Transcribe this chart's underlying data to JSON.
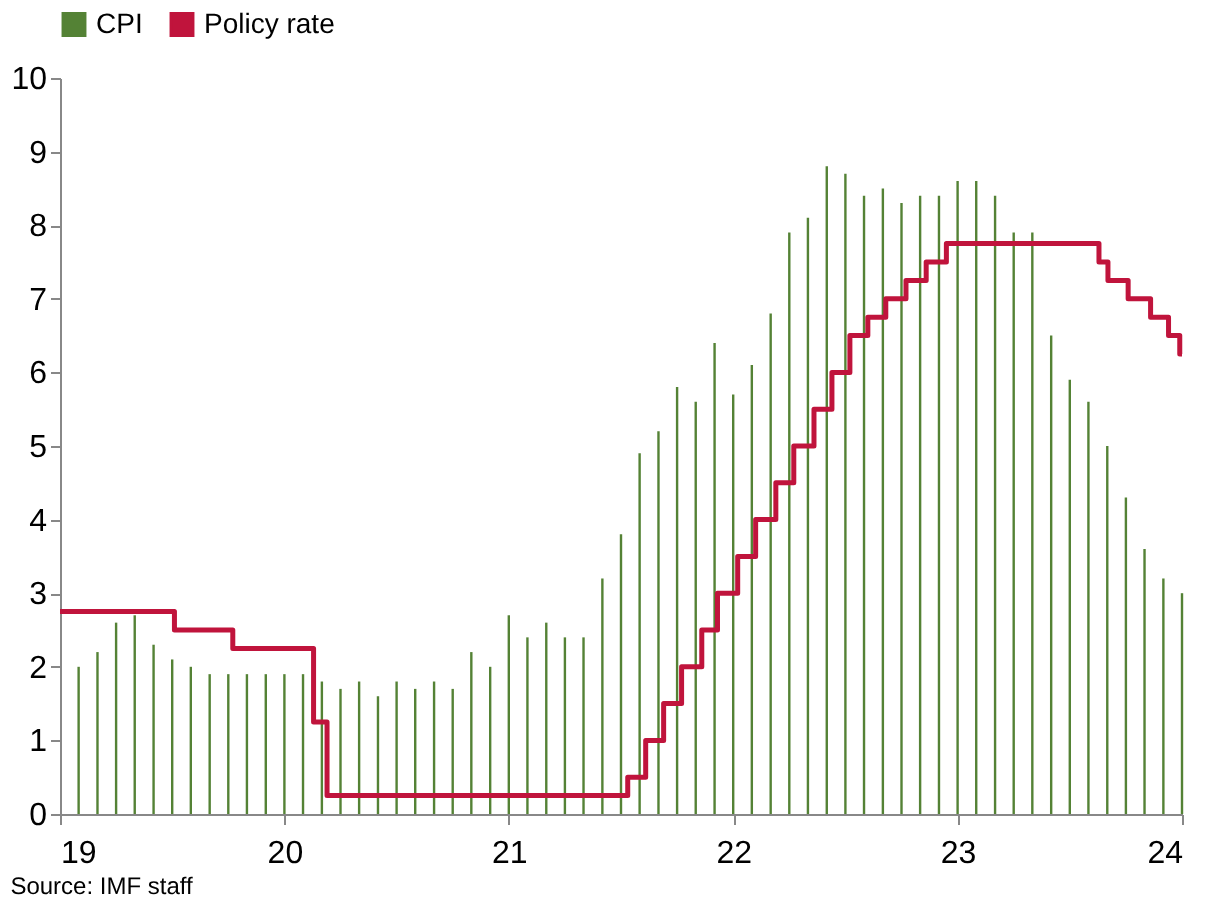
{
  "chart_data": {
    "type": "bar",
    "xlim": [
      19,
      24
    ],
    "xticks": [
      19,
      20,
      21,
      22,
      23,
      24
    ],
    "ylim": [
      0,
      10
    ],
    "yticks": [
      0,
      1,
      2,
      3,
      4,
      5,
      6,
      7,
      8,
      9,
      10
    ],
    "grid": false,
    "legend": "top",
    "annotations": [
      "Source: IMF staff"
    ],
    "series": [
      {
        "name": "CPI",
        "color": "#548235",
        "x": [
          19.083,
          19.167,
          19.25,
          19.333,
          19.417,
          19.5,
          19.583,
          19.667,
          19.75,
          19.833,
          19.917,
          20.0,
          20.083,
          20.167,
          20.25,
          20.333,
          20.417,
          20.5,
          20.583,
          20.667,
          20.75,
          20.833,
          20.917,
          21.0,
          21.083,
          21.167,
          21.25,
          21.333,
          21.417,
          21.5,
          21.583,
          21.667,
          21.75,
          21.833,
          21.917,
          22.0,
          22.083,
          22.167,
          22.25,
          22.333,
          22.417,
          22.5,
          22.583,
          22.667,
          22.75,
          22.833,
          22.917,
          23.0,
          23.083,
          23.167,
          23.25,
          23.333,
          23.417,
          23.5,
          23.583,
          23.667,
          23.75,
          23.833,
          23.917,
          24.0
        ],
        "values": [
          2.0,
          2.2,
          2.6,
          2.7,
          2.3,
          2.1,
          2.0,
          1.9,
          1.9,
          1.9,
          1.9,
          1.9,
          1.9,
          1.8,
          1.7,
          1.8,
          1.6,
          1.8,
          1.7,
          1.8,
          1.7,
          2.2,
          2.0,
          2.7,
          2.4,
          2.6,
          2.4,
          2.4,
          3.2,
          3.8,
          4.9,
          5.2,
          5.8,
          5.6,
          6.4,
          5.7,
          6.1,
          6.8,
          7.9,
          8.1,
          8.8,
          8.7,
          8.4,
          8.5,
          8.3,
          8.4,
          8.4,
          8.6,
          8.6,
          8.4,
          7.9,
          7.9,
          6.5,
          5.9,
          5.6,
          5.0,
          4.3,
          3.6,
          3.2,
          3.0
        ]
      },
      {
        "name": "Policy rate",
        "type": "step",
        "color": "#c0143c",
        "x": [
          19.0,
          19.51,
          19.77,
          20.13,
          20.19,
          21.53,
          21.61,
          21.69,
          21.77,
          21.86,
          21.93,
          22.02,
          22.1,
          22.19,
          22.27,
          22.36,
          22.44,
          22.52,
          22.6,
          22.68,
          22.77,
          22.86,
          22.95,
          23.63,
          23.67,
          23.76,
          23.86,
          23.94,
          23.99,
          24.0
        ],
        "values": [
          2.75,
          2.5,
          2.25,
          1.25,
          0.25,
          0.5,
          1.0,
          1.5,
          2.0,
          2.5,
          3.0,
          3.5,
          4.0,
          4.5,
          5.0,
          5.5,
          6.0,
          6.5,
          6.75,
          7.0,
          7.25,
          7.5,
          7.75,
          7.5,
          7.25,
          7.0,
          6.75,
          6.5,
          6.25,
          6.25
        ]
      }
    ]
  }
}
